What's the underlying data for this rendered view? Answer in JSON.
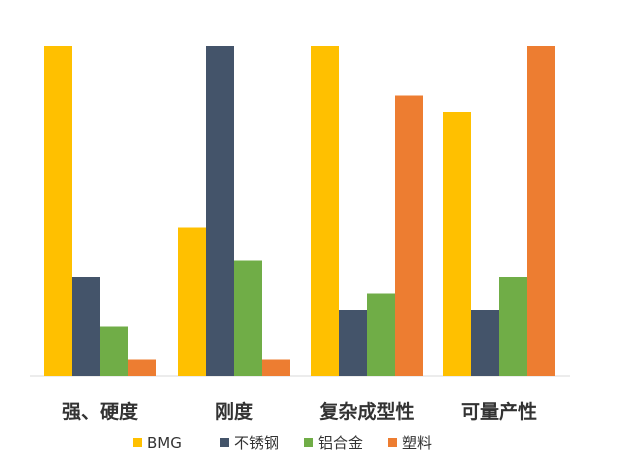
{
  "chart_data": {
    "type": "bar",
    "title": "",
    "xlabel": "",
    "ylabel": "",
    "ylim": [
      0,
      100
    ],
    "grid": false,
    "legend_position": "bottom",
    "categories": [
      "强、硬度",
      "刚度",
      "复杂成型性",
      "可量产性"
    ],
    "series": [
      {
        "name": "BMG",
        "color": "#FFC000",
        "values": [
          100,
          45,
          100,
          80
        ]
      },
      {
        "name": "不锈钢",
        "color": "#44546A",
        "values": [
          30,
          100,
          20,
          20
        ]
      },
      {
        "name": "铝合金",
        "color": "#70AD47",
        "values": [
          15,
          35,
          25,
          30
        ]
      },
      {
        "name": "塑料",
        "color": "#ED7D31",
        "values": [
          5,
          5,
          85,
          100
        ]
      }
    ]
  }
}
